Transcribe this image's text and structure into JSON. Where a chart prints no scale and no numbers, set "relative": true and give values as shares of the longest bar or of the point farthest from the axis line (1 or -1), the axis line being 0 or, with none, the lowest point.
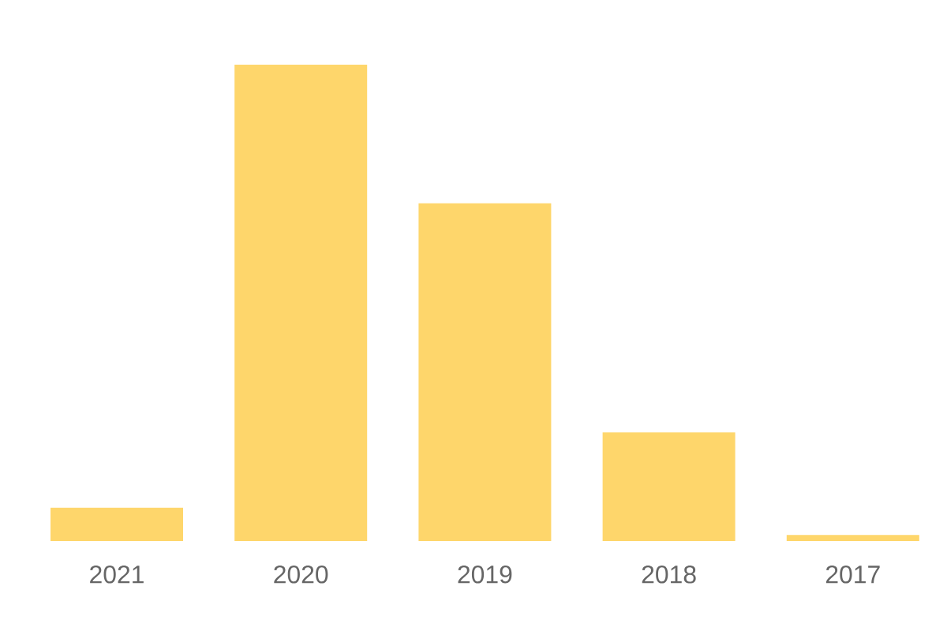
{
  "chart_data": {
    "type": "bar",
    "relative": true,
    "categories": [
      "2021",
      "2020",
      "2019",
      "2018",
      "2017"
    ],
    "values": [
      0.07,
      1,
      0.709,
      0.228,
      0.013
    ],
    "color": "#fed66b"
  }
}
